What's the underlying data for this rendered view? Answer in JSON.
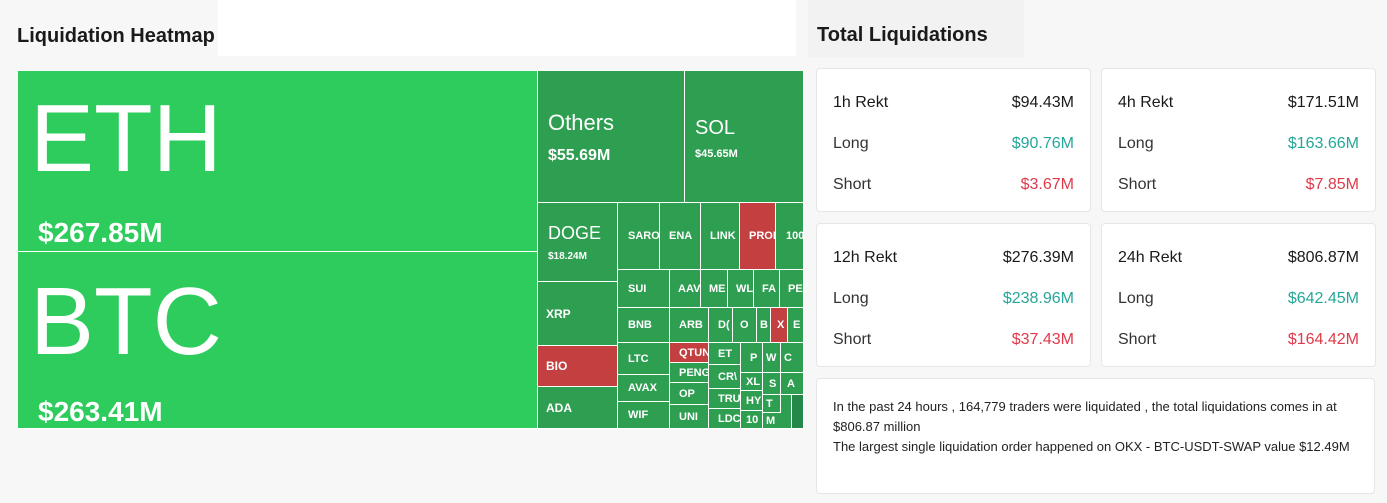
{
  "heatmap_title": "Liquidation Heatmap",
  "totals_title": "Total Liquidations",
  "tiles": {
    "eth": {
      "symbol": "ETH",
      "value": "$267.85M"
    },
    "btc": {
      "symbol": "BTC",
      "value": "$263.41M"
    },
    "others": {
      "symbol": "Others",
      "value": "$55.69M"
    },
    "sol": {
      "symbol": "SOL",
      "value": "$45.65M"
    },
    "doge": {
      "symbol": "DOGE",
      "value": "$18.24M"
    },
    "xrp": "XRP",
    "bio": "BIO",
    "ada": "ADA",
    "small": [
      "SARO",
      "ENA",
      "LINK",
      "PROI",
      "100",
      "SUI",
      "AAV",
      "ME",
      "WL",
      "FA",
      "PE",
      "BNB",
      "ARB",
      "D(",
      "O",
      "B",
      "X",
      "E",
      "LTC",
      "QTUN",
      "ET",
      "P",
      "W",
      "C",
      "AVAX",
      "PENG",
      "CR\\",
      "XL",
      "S",
      "A",
      "WIF",
      "OP",
      "TRU",
      "HY",
      "T",
      "UNI",
      "LDC",
      "10",
      "M"
    ]
  },
  "totals": [
    {
      "period": "1h Rekt",
      "total": "$94.43M",
      "long_label": "Long",
      "long": "$90.76M",
      "short_label": "Short",
      "short": "$3.67M"
    },
    {
      "period": "4h Rekt",
      "total": "$171.51M",
      "long_label": "Long",
      "long": "$163.66M",
      "short_label": "Short",
      "short": "$7.85M"
    },
    {
      "period": "12h Rekt",
      "total": "$276.39M",
      "long_label": "Long",
      "long": "$238.96M",
      "short_label": "Short",
      "short": "$37.43M"
    },
    {
      "period": "24h Rekt",
      "total": "$806.87M",
      "long_label": "Long",
      "long": "$642.45M",
      "short_label": "Short",
      "short": "$164.42M"
    }
  ],
  "info": {
    "line1": "In the past 24 hours , 164,779 traders were liquidated , the total liquidations comes in at $806.87 million",
    "line2": "The largest single liquidation order happened on OKX - BTC-USDT-SWAP value $12.49M"
  },
  "colors": {
    "bright_green": "#2ecc5c",
    "green": "#2e9e51",
    "red": "#c44040",
    "long": "#26a69a",
    "short": "#e0394a"
  }
}
